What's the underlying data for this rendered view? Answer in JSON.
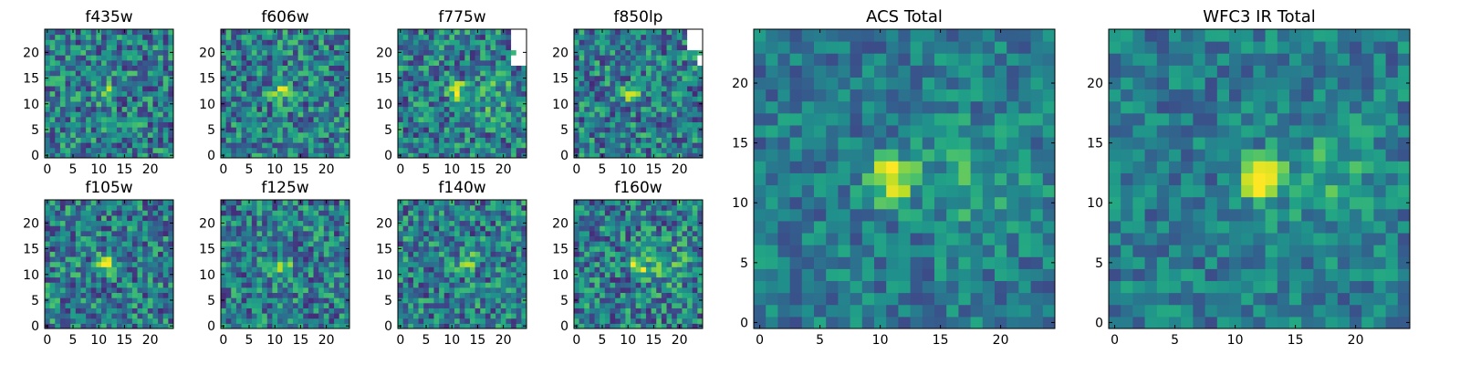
{
  "figure": {
    "colormap": "viridis",
    "background": "#ffffff",
    "blank_pixel_color": "#ffffff"
  },
  "chart_data": [
    {
      "type": "heatmap",
      "title": "f435w",
      "xlim": [
        0,
        24
      ],
      "ylim": [
        0,
        24
      ],
      "xticks": [
        0,
        5,
        10,
        15,
        20
      ],
      "yticks": [
        0,
        5,
        10,
        15,
        20
      ],
      "grid": false,
      "colormap": "viridis",
      "grid_shape": [
        25,
        25
      ],
      "bright_source": {
        "x": 11.5,
        "y": 12
      },
      "blank_region": "none"
    },
    {
      "type": "heatmap",
      "title": "f606w",
      "xlim": [
        0,
        24
      ],
      "ylim": [
        0,
        24
      ],
      "xticks": [
        0,
        5,
        10,
        15,
        20
      ],
      "yticks": [
        0,
        5,
        10,
        15,
        20
      ],
      "grid": false,
      "colormap": "viridis",
      "grid_shape": [
        25,
        25
      ],
      "bright_source": {
        "x": 11,
        "y": 12
      },
      "blank_region": "none"
    },
    {
      "type": "heatmap",
      "title": "f775w",
      "xlim": [
        0,
        24
      ],
      "ylim": [
        0,
        24
      ],
      "xticks": [
        0,
        5,
        10,
        15,
        20
      ],
      "yticks": [
        0,
        5,
        10,
        15,
        20
      ],
      "grid": false,
      "colormap": "viridis",
      "grid_shape": [
        25,
        25
      ],
      "bright_source": {
        "x": 11,
        "y": 12.5
      },
      "blank_region": "upper-right"
    },
    {
      "type": "heatmap",
      "title": "f850lp",
      "xlim": [
        0,
        24
      ],
      "ylim": [
        0,
        24
      ],
      "xticks": [
        0,
        5,
        10,
        15,
        20
      ],
      "yticks": [
        0,
        5,
        10,
        15,
        20
      ],
      "grid": false,
      "colormap": "viridis",
      "grid_shape": [
        25,
        25
      ],
      "bright_source": {
        "x": 11,
        "y": 12
      },
      "blank_region": "upper-right"
    },
    {
      "type": "heatmap",
      "title": "ACS Total",
      "xlim": [
        0,
        24
      ],
      "ylim": [
        0,
        24
      ],
      "xticks": [
        0,
        5,
        10,
        15,
        20
      ],
      "yticks": [
        0,
        5,
        10,
        15,
        20
      ],
      "grid": false,
      "colormap": "viridis",
      "grid_shape": [
        25,
        25
      ],
      "bright_source": {
        "x": 11,
        "y": 12
      },
      "blank_region": "none"
    },
    {
      "type": "heatmap",
      "title": "f105w",
      "xlim": [
        0,
        24
      ],
      "ylim": [
        0,
        24
      ],
      "xticks": [
        0,
        5,
        10,
        15,
        20
      ],
      "yticks": [
        0,
        5,
        10,
        15,
        20
      ],
      "grid": false,
      "colormap": "viridis",
      "grid_shape": [
        25,
        25
      ],
      "bright_source": {
        "x": 11.5,
        "y": 12
      },
      "blank_region": "none"
    },
    {
      "type": "heatmap",
      "title": "f125w",
      "xlim": [
        0,
        24
      ],
      "ylim": [
        0,
        24
      ],
      "xticks": [
        0,
        5,
        10,
        15,
        20
      ],
      "yticks": [
        0,
        5,
        10,
        15,
        20
      ],
      "grid": false,
      "colormap": "viridis",
      "grid_shape": [
        25,
        25
      ],
      "bright_source": {
        "x": 11.5,
        "y": 11.5
      },
      "blank_region": "none"
    },
    {
      "type": "heatmap",
      "title": "f140w",
      "xlim": [
        0,
        24
      ],
      "ylim": [
        0,
        24
      ],
      "xticks": [
        0,
        5,
        10,
        15,
        20
      ],
      "yticks": [
        0,
        5,
        10,
        15,
        20
      ],
      "grid": false,
      "colormap": "viridis",
      "grid_shape": [
        25,
        25
      ],
      "bright_source": {
        "x": 13,
        "y": 12.5
      },
      "blank_region": "none"
    },
    {
      "type": "heatmap",
      "title": "f160w",
      "xlim": [
        0,
        24
      ],
      "ylim": [
        0,
        24
      ],
      "xticks": [
        0,
        5,
        10,
        15,
        20
      ],
      "yticks": [
        0,
        5,
        10,
        15,
        20
      ],
      "grid": false,
      "colormap": "viridis",
      "grid_shape": [
        25,
        25
      ],
      "bright_source": {
        "x": 12,
        "y": 11.5
      },
      "blank_region": "none"
    },
    {
      "type": "heatmap",
      "title": "WFC3 IR Total",
      "xlim": [
        0,
        24
      ],
      "ylim": [
        0,
        24
      ],
      "xticks": [
        0,
        5,
        10,
        15,
        20
      ],
      "yticks": [
        0,
        5,
        10,
        15,
        20
      ],
      "grid": false,
      "colormap": "viridis",
      "grid_shape": [
        25,
        25
      ],
      "bright_source": {
        "x": 12,
        "y": 12
      },
      "blank_region": "none"
    }
  ]
}
